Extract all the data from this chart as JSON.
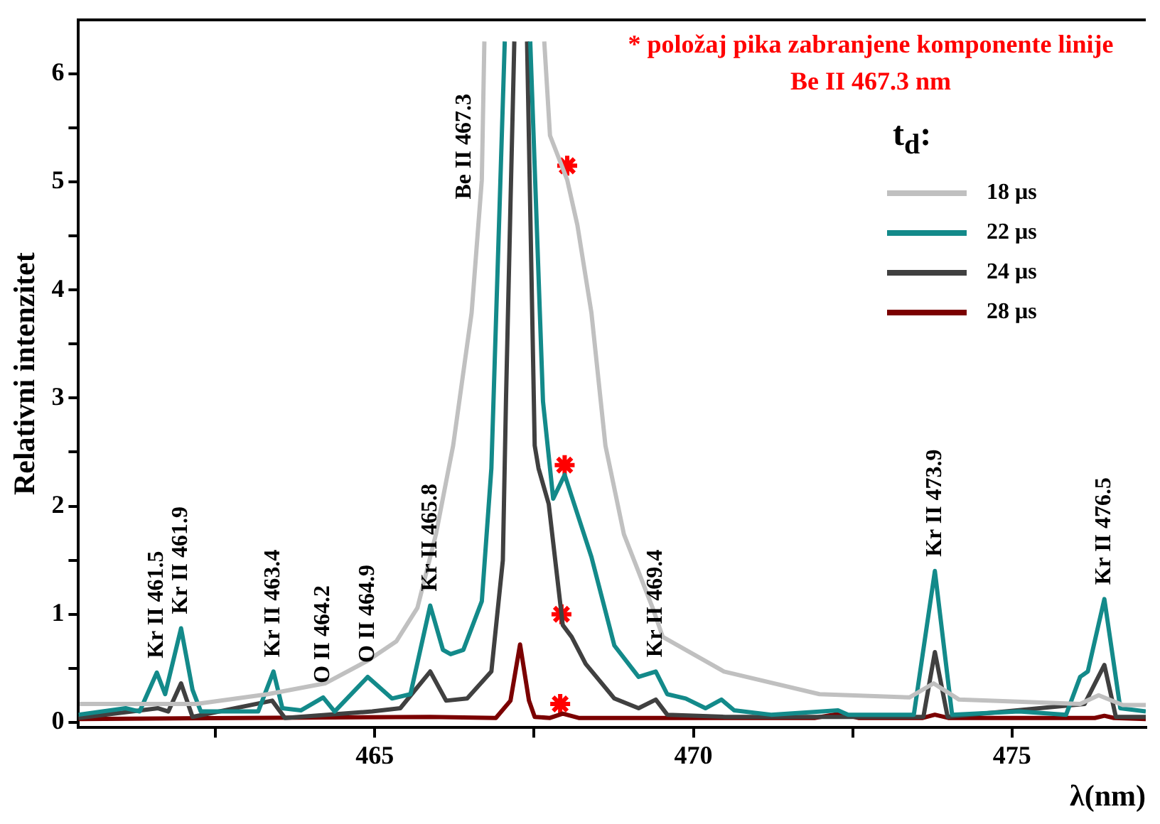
{
  "chart_data": {
    "type": "line",
    "xlabel": "λ(nm)",
    "ylabel": "Relativni intenzitet",
    "legend_title": "t$_{d}$:",
    "legend": "top right",
    "marker": "none",
    "xlim": [
      460.35,
      477.1
    ],
    "ylim": [
      -0.05,
      6.5
    ],
    "xticks": [
      {
        "value": 462.5,
        "label": null
      },
      465,
      {
        "value": 467.5,
        "label": null
      },
      470,
      {
        "value": 472.5,
        "label": null
      },
      475
    ],
    "yticks": [
      0,
      {
        "value": 0.5,
        "label": null
      },
      1,
      {
        "value": 1.5,
        "label": null
      },
      2,
      {
        "value": 2.5,
        "label": null
      },
      3,
      {
        "value": 3.5,
        "label": null
      },
      4,
      {
        "value": 4.5,
        "label": null
      },
      5,
      {
        "value": 5.5,
        "label": null
      },
      6
    ],
    "series": [
      {
        "name": "18 μs",
        "color": "#c0c0c0",
        "x": [
          460.37,
          461.1,
          462.2,
          463.32,
          464.22,
          464.89,
          465.34,
          465.67,
          465.96,
          466.16,
          466.23,
          466.52,
          466.68,
          466.72,
          467.2,
          467.66,
          467.75,
          468.02,
          468.18,
          468.4,
          468.62,
          468.91,
          469.36,
          469.52,
          470.48,
          471.98,
          473.39,
          473.77,
          474.17,
          476.07,
          476.36,
          476.74,
          477.1
        ],
        "values": [
          0.17,
          0.17,
          0.17,
          0.26,
          0.36,
          0.57,
          0.75,
          1.06,
          1.74,
          2.35,
          2.56,
          3.79,
          5.02,
          6.3,
          null,
          6.3,
          5.43,
          5.02,
          4.6,
          3.79,
          2.56,
          1.74,
          1.06,
          0.79,
          0.47,
          0.26,
          0.23,
          0.36,
          0.21,
          0.17,
          0.25,
          0.16,
          0.16
        ]
      },
      {
        "name": "22 μs",
        "color": "#138a8a",
        "x": [
          460.35,
          461.09,
          461.31,
          461.58,
          461.71,
          461.96,
          462.14,
          462.27,
          463.17,
          463.41,
          463.55,
          463.84,
          464.19,
          464.37,
          464.89,
          465.27,
          465.56,
          465.87,
          466.07,
          466.19,
          466.39,
          466.68,
          466.83,
          467.04,
          467.2,
          467.44,
          467.64,
          467.8,
          467.98,
          468.4,
          468.76,
          469.14,
          469.41,
          469.59,
          469.88,
          470.19,
          470.44,
          470.64,
          471.22,
          472.27,
          472.43,
          473.46,
          473.79,
          474.06,
          475.11,
          475.85,
          476.07,
          476.19,
          476.45,
          476.7,
          477.1
        ],
        "values": [
          0.07,
          0.13,
          0.1,
          0.46,
          0.26,
          0.87,
          0.3,
          0.1,
          0.1,
          0.47,
          0.13,
          0.11,
          0.23,
          0.1,
          0.42,
          0.22,
          0.26,
          1.08,
          0.67,
          0.63,
          0.67,
          1.12,
          2.35,
          6.3,
          null,
          6.3,
          2.97,
          2.07,
          2.29,
          1.53,
          0.71,
          0.42,
          0.47,
          0.26,
          0.22,
          0.13,
          0.21,
          0.11,
          0.07,
          0.11,
          0.07,
          0.07,
          1.4,
          0.07,
          0.1,
          0.07,
          0.42,
          0.47,
          1.14,
          0.13,
          0.1
        ]
      },
      {
        "name": "24 μs",
        "color": "#404040",
        "x": [
          460.35,
          461.6,
          461.76,
          461.96,
          462.14,
          463.39,
          463.59,
          464.96,
          465.4,
          465.87,
          466.12,
          466.45,
          466.83,
          467.01,
          467.06,
          467.13,
          467.19,
          467.3,
          467.39,
          467.51,
          467.57,
          467.73,
          467.95,
          468.09,
          468.31,
          468.76,
          469.14,
          469.41,
          469.59,
          470.5,
          473.61,
          473.79,
          473.99,
          476.14,
          476.45,
          476.63,
          477.1
        ],
        "values": [
          0.04,
          0.13,
          0.1,
          0.36,
          0.05,
          0.2,
          0.04,
          0.1,
          0.13,
          0.47,
          0.2,
          0.22,
          0.47,
          1.5,
          3,
          4.8,
          6.3,
          null,
          6.3,
          2.56,
          2.35,
          2.02,
          0.9,
          0.79,
          0.54,
          0.22,
          0.13,
          0.21,
          0.07,
          0.05,
          0.05,
          0.65,
          0.05,
          0.17,
          0.53,
          0.05,
          0.05
        ]
      },
      {
        "name": "28 μs",
        "color": "#7b0000",
        "x": [
          460.35,
          465.87,
          466.9,
          467.13,
          467.28,
          467.42,
          467.51,
          467.75,
          467.95,
          468.2,
          471.9,
          472.3,
          472.6,
          473.6,
          473.79,
          474,
          476.3,
          476.45,
          476.6,
          477.1
        ],
        "values": [
          0.03,
          0.05,
          0.04,
          0.2,
          0.72,
          0.2,
          0.05,
          0.04,
          0.08,
          0.04,
          0.04,
          0.08,
          0.04,
          0.04,
          0.07,
          0.04,
          0.04,
          0.06,
          0.04,
          0.03
        ]
      },
      {
        "type": "scatter",
        "marker": "cross",
        "color": "#ff0000",
        "x": [
          468.02,
          467.98,
          467.93,
          467.91
        ],
        "values": [
          5.15,
          2.38,
          1.0,
          0.17
        ]
      }
    ],
    "annotations": [
      "* položaj pika zabranjene komponente linije Be II 467.3 nm",
      "Be II 467.3",
      {
        "text": "Kr II 461.5",
        "x": 461.58,
        "y": 0.46
      },
      {
        "text": "Kr II 461.9",
        "x": 461.96,
        "y": 0.87
      },
      {
        "text": "Kr II 463.4",
        "x": 463.41,
        "y": 0.47
      },
      {
        "text": "O II 464.2",
        "x": 464.19,
        "y": 0.23
      },
      {
        "text": "O II 464.9",
        "x": 464.89,
        "y": 0.42
      },
      {
        "text": "Kr II 465.8",
        "x": 465.87,
        "y": 1.08
      },
      {
        "text": "Kr II 469.4",
        "x": 469.41,
        "y": 0.47
      },
      {
        "text": "Kr II 473.9",
        "x": 473.79,
        "y": 1.4
      },
      {
        "text": "Kr II 476.5",
        "x": 476.45,
        "y": 1.14
      }
    ]
  }
}
